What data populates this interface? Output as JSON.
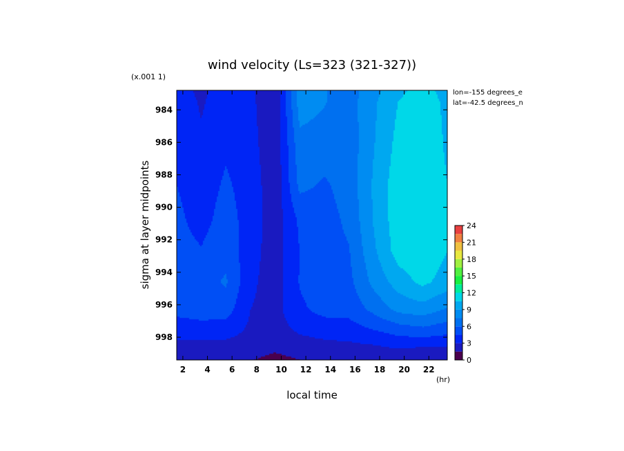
{
  "chart_data": {
    "type": "heatmap",
    "title": "wind velocity (Ls=323 (321-327))",
    "xlabel": "local time",
    "ylabel": "sigma at layer midpoints",
    "x_unit": "(hr)",
    "y_scale_note": "(x.001 1)",
    "annotations": [
      "lon=-155 degrees_e",
      "lat=-42.5 degrees_n"
    ],
    "xlim": [
      1.5,
      23.5
    ],
    "ylim": [
      999.4,
      982.8
    ],
    "x_ticks": [
      2,
      4,
      6,
      8,
      10,
      12,
      14,
      16,
      18,
      20,
      22
    ],
    "x_tick_labels": [
      "2",
      "4",
      "6",
      "8",
      "10",
      "12",
      "14",
      "16",
      "18",
      "20",
      "22"
    ],
    "y_ticks": [
      984,
      986,
      988,
      990,
      992,
      994,
      996,
      998
    ],
    "y_tick_labels": [
      "984",
      "986",
      "988",
      "990",
      "992",
      "994",
      "996",
      "998"
    ],
    "x": [
      1.5,
      3.5,
      5.5,
      7.5,
      9.5,
      11.5,
      13.5,
      15.5,
      17.5,
      19.5,
      21.5,
      23.5
    ],
    "y": [
      982.8,
      983.5,
      986.2,
      988.6,
      990.8,
      992.7,
      994.6,
      996.3,
      997.6,
      998.6,
      999.4
    ],
    "z": [
      [
        4.0,
        2.5,
        4.2,
        3.3,
        1.6,
        8.2,
        7.6,
        6.8,
        8.5,
        10.2,
        11.0,
        10.0
      ],
      [
        4.0,
        2.8,
        4.0,
        3.4,
        1.6,
        8.2,
        7.6,
        6.8,
        8.7,
        10.5,
        11.2,
        10.2
      ],
      [
        4.1,
        3.3,
        4.3,
        3.6,
        1.8,
        7.0,
        6.8,
        6.6,
        8.9,
        11.0,
        11.5,
        10.3
      ],
      [
        4.5,
        3.8,
        4.7,
        3.9,
        1.9,
        6.4,
        5.8,
        6.6,
        9.2,
        11.4,
        11.7,
        10.5
      ],
      [
        4.8,
        4.0,
        5.1,
        3.9,
        2.1,
        4.8,
        5.4,
        6.3,
        9.1,
        11.4,
        11.8,
        10.5
      ],
      [
        5.0,
        4.6,
        5.5,
        3.6,
        2.2,
        4.5,
        5.4,
        5.9,
        8.7,
        11.2,
        11.7,
        10.5
      ],
      [
        5.3,
        5.4,
        6.2,
        3.3,
        2.3,
        4.6,
        5.6,
        5.6,
        7.9,
        9.7,
        10.9,
        9.8
      ],
      [
        4.9,
        5.3,
        5.2,
        3.0,
        2.5,
        4.2,
        5.0,
        5.0,
        6.4,
        7.9,
        8.3,
        7.3
      ],
      [
        3.7,
        3.7,
        3.7,
        2.7,
        2.4,
        3.2,
        3.6,
        3.8,
        4.4,
        5.1,
        5.5,
        5.0
      ],
      [
        2.4,
        2.4,
        2.4,
        2.3,
        1.9,
        2.3,
        2.5,
        2.6,
        2.8,
        3.2,
        3.0,
        2.9
      ],
      [
        1.6,
        1.6,
        1.6,
        1.6,
        1.0,
        1.5,
        1.6,
        1.6,
        1.7,
        1.8,
        1.8,
        1.7
      ]
    ],
    "levels": [
      0,
      1.5,
      3,
      4.5,
      6,
      7.5,
      9,
      10.5,
      12,
      13.5,
      15,
      16.5,
      18,
      19.5,
      21,
      22.5,
      24
    ],
    "level_colors": [
      "#4a004e",
      "#1a1ac0",
      "#0025f5",
      "#004ff5",
      "#0070f0",
      "#008cf2",
      "#00a8f0",
      "#00d8e8",
      "#00ee9a",
      "#18f040",
      "#50f040",
      "#a0f040",
      "#e8e840",
      "#f0c040",
      "#f08040",
      "#e84040"
    ],
    "colorbar_ticks": [
      0,
      3,
      6,
      9,
      12,
      15,
      18,
      21,
      24
    ],
    "colorbar_tick_labels": [
      "0",
      "3",
      "6",
      "9",
      "12",
      "15",
      "18",
      "21",
      "24"
    ]
  }
}
